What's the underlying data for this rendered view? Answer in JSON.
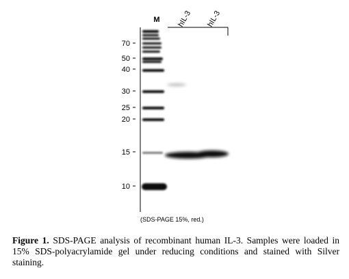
{
  "figure": {
    "lanes": [
      "M",
      "hIL-3",
      "hIL-3"
    ],
    "marker_labels": [
      70,
      50,
      40,
      30,
      25,
      20,
      15,
      10
    ],
    "gel_note": "(SDS-PAGE 15%, red.)",
    "caption_label": "Figure 1.",
    "caption_text": "SDS-PAGE analysis of recombinant human IL-3. Samples were loaded in 15% SDS-polyacrylamide gel under reducing conditions and stained with Silver staining."
  }
}
